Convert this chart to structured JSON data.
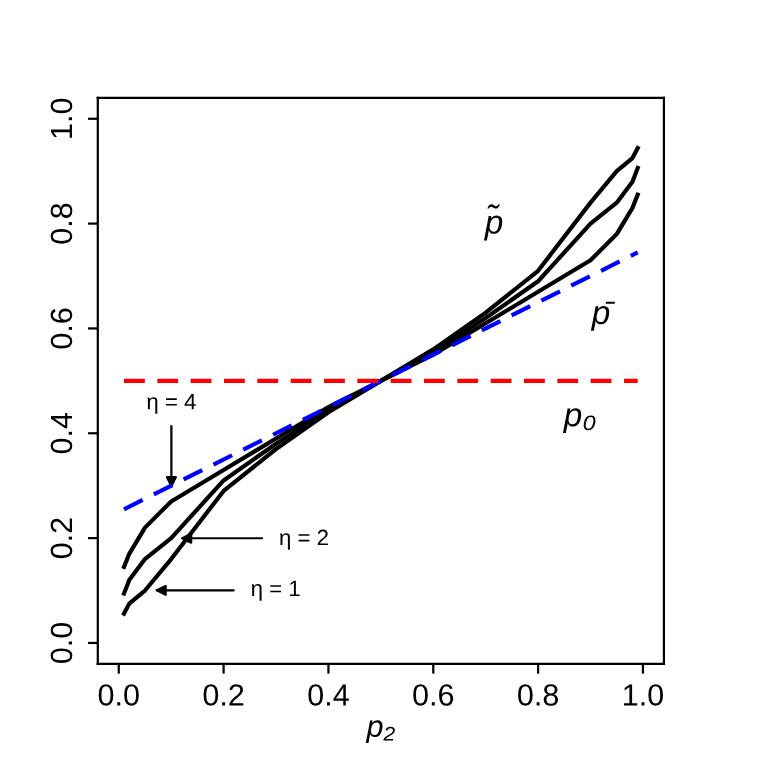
{
  "chart_data": {
    "type": "line",
    "xlabel": "p₂",
    "xlim": [
      -0.04,
      1.04
    ],
    "ylim": [
      -0.04,
      1.04
    ],
    "xticks": [
      {
        "value": 0,
        "label": "0.0"
      },
      {
        "value": 0.2,
        "label": "0.2"
      },
      {
        "value": 0.4,
        "label": "0.4"
      },
      {
        "value": 0.6,
        "label": "0.6"
      },
      {
        "value": 0.8,
        "label": "0.8"
      },
      {
        "value": 1,
        "label": "1.0"
      }
    ],
    "yticks": [
      {
        "value": 0,
        "label": "0.0"
      },
      {
        "value": 0.2,
        "label": "0.2"
      },
      {
        "value": 0.4,
        "label": "0.4"
      },
      {
        "value": 0.6,
        "label": "0.6"
      },
      {
        "value": 0.8,
        "label": "0.8"
      },
      {
        "value": 1,
        "label": "1.0"
      }
    ],
    "x": [
      0.01,
      0.02,
      0.05,
      0.1,
      0.2,
      0.3,
      0.4,
      0.5,
      0.6,
      0.7,
      0.8,
      0.9,
      0.95,
      0.98,
      0.99
    ],
    "series": [
      {
        "color": "#000000",
        "line_style": "solid",
        "values": [
          0.056,
          0.075,
          0.1,
          0.16,
          0.29,
          0.37,
          0.44,
          0.5,
          0.56,
          0.63,
          0.71,
          0.84,
          0.9,
          0.925,
          0.944
        ]
      },
      {
        "color": "#000000",
        "line_style": "solid",
        "values": [
          0.094,
          0.12,
          0.16,
          0.2,
          0.31,
          0.38,
          0.445,
          0.5,
          0.555,
          0.62,
          0.69,
          0.8,
          0.84,
          0.88,
          0.906
        ]
      },
      {
        "color": "#000000",
        "line_style": "solid",
        "values": [
          0.145,
          0.17,
          0.22,
          0.27,
          0.33,
          0.39,
          0.45,
          0.5,
          0.55,
          0.61,
          0.67,
          0.73,
          0.78,
          0.83,
          0.855
        ]
      },
      {
        "name": "p̄",
        "color": "#0000ff",
        "line_style": "dashed",
        "x": [
          0.01,
          0.99
        ],
        "values": [
          0.255,
          0.745
        ]
      }
    ],
    "ref_lines": [
      {
        "axis": "y",
        "value": 0.5,
        "label": "p₀",
        "color": "#ff0000",
        "line_style": "dashed"
      }
    ],
    "annotations": [
      "η = 4",
      "η = 2",
      "η = 1",
      "p̃"
    ],
    "grid": false,
    "legend": false,
    "marker": "none"
  }
}
